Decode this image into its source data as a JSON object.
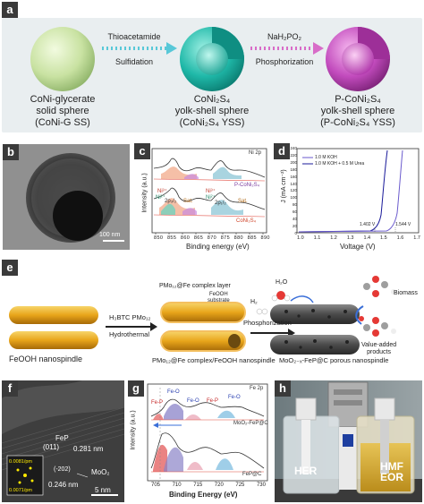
{
  "panel_a": {
    "letter": "a",
    "step1_top": "Thioacetamide",
    "step1_bottom": "Sulfidation",
    "step2_top": "NaH₂PO₂",
    "step2_bottom": "Phosphorization",
    "sphere1": [
      "CoNi-glycerate",
      "solid sphere",
      "(CoNi-G SS)"
    ],
    "sphere2": [
      "CoNi₂S₄",
      "yolk-shell sphere",
      "(CoNi₂S₄ YSS)"
    ],
    "sphere3": [
      "P-CoNi₂S₄",
      "yolk-shell sphere",
      "(P-CoNi₂S₄ YSS)"
    ],
    "colors": {
      "sphere1": "#c9e2a2",
      "sphere2": "#1fb8a8",
      "sphere3": "#c24bbd",
      "arrow1": "#58c8d8",
      "arrow2": "#d86cc8"
    }
  },
  "panel_b": {
    "letter": "b",
    "scale_bar": "100 nm"
  },
  "panel_c": {
    "letter": "c",
    "corner_label": "Ni 2p",
    "upper_trace_label": "P-CoNi₂S₄",
    "lower_trace_label": "CoNi₂S₄",
    "peak_labels": [
      "Ni³⁺",
      "Ni²⁺",
      "Sat.",
      "Ni³⁺",
      "Ni²⁺",
      "Sat."
    ],
    "peak_sublabels": [
      "2p₃/₂",
      "2p₁/₂"
    ],
    "ylabel": "Intensity (a.u.)",
    "xlabel": "Binding energy (eV)",
    "xticks": [
      "850",
      "855",
      "860",
      "865",
      "870",
      "875",
      "880",
      "885",
      "890"
    ]
  },
  "panel_d": {
    "letter": "d",
    "legend": [
      "1.0 M KOH",
      "1.0 M KOH + 0.5 M Urea"
    ],
    "annotations": [
      "1.402 V",
      "1.544 V"
    ],
    "ylabel": "J (mA cm⁻²)",
    "xlabel": "Voltage (V)",
    "xticks": [
      "1.0",
      "1.1",
      "1.2",
      "1.3",
      "1.4",
      "1.5",
      "1.6",
      "1.7"
    ],
    "yticks": [
      "0",
      "20",
      "40",
      "60",
      "80",
      "100",
      "120",
      "140",
      "160",
      "180",
      "200",
      "220",
      "240"
    ]
  },
  "panel_e": {
    "letter": "e",
    "precursor_label": "FeOOH nanospindle",
    "reagents": "H₃BTC  PMo₁₂",
    "process1": "Hydrothermal",
    "layer_label": "PMo₁₂@Fe complex layer",
    "substrate_label": [
      "FeOOH",
      "substrate"
    ],
    "mid_label": "PMo₁₂@Fe complex/FeOOH nanospindle",
    "process2": "Phosphorization",
    "final_label": "MoO₂₋ₓ-FeP@C porous nanospindle",
    "h2o": "H₂O",
    "h2": "H₂",
    "biomass": "Biomass",
    "products": [
      "Value-added",
      "products"
    ]
  },
  "panel_f": {
    "letter": "f",
    "fep_label": "FeP",
    "plane1": "(011)",
    "d1": "0.281 nm",
    "plane2": "(-202)",
    "d2": "0.246 nm",
    "moo2": "MoO₂",
    "fft_top": "0.0081/pm",
    "fft_bottom": "0.0071/pm",
    "scale_bar": "5 nm"
  },
  "panel_g": {
    "letter": "g",
    "corner_label": "Fe 2p",
    "peak_labels_top": [
      "Fe-O",
      "Fe-P",
      "Fe-O",
      "Fe-P",
      "Fe-O"
    ],
    "upper_trace_label": "MoO₂-FeP@C",
    "lower_trace_label": "FeP@C",
    "ylabel": "Intensity (a.u.)",
    "xlabel": "Binding Energy (eV)",
    "xticks": [
      "705",
      "710",
      "715",
      "720",
      "725",
      "730"
    ]
  },
  "panel_h": {
    "letter": "h",
    "left_label": "HER",
    "right_label": [
      "HMF",
      "EOR"
    ]
  }
}
